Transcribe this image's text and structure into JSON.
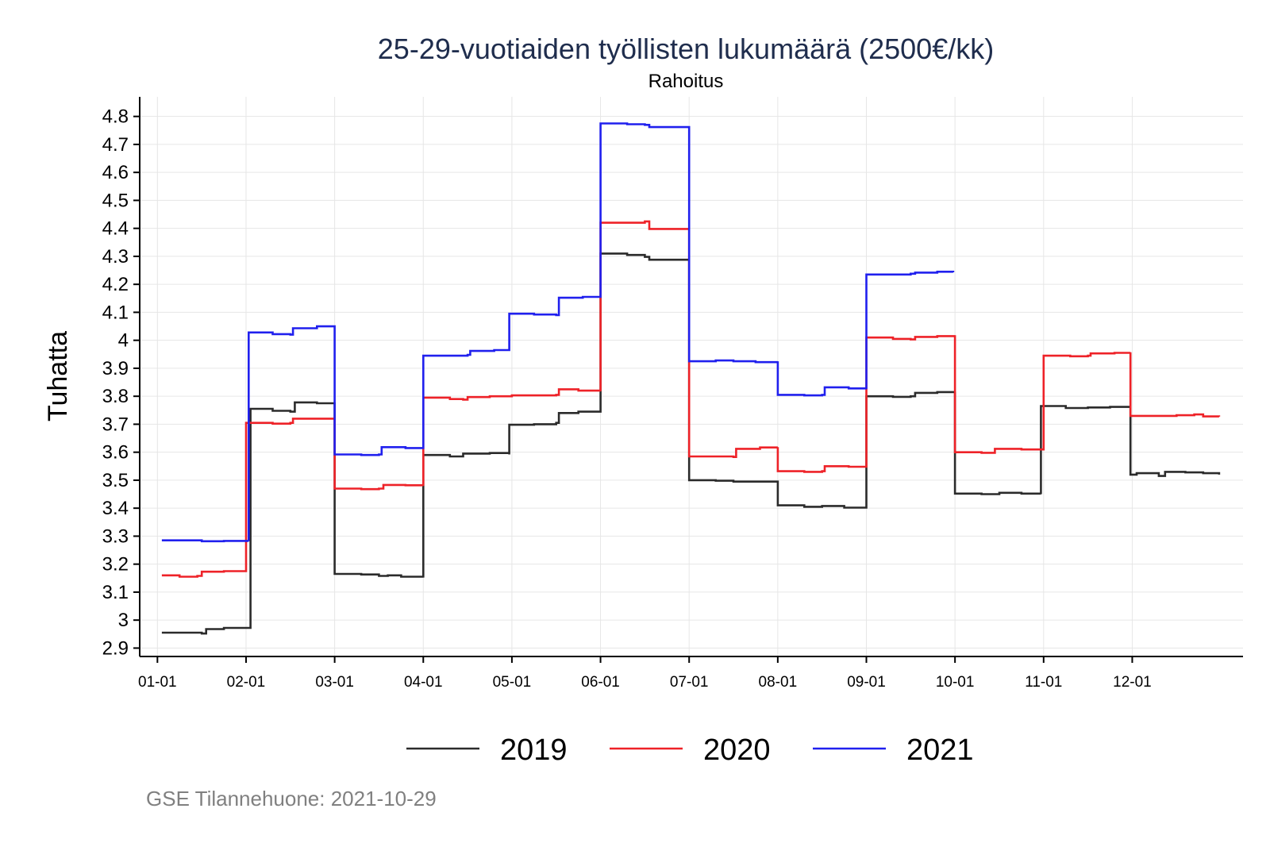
{
  "chart_data": {
    "type": "line",
    "title": "25-29-vuotiaiden työllisten lukumäärä (2500€/kk)",
    "subtitle": "Rahoitus",
    "ylabel": "Tuhatta",
    "xlabel": "",
    "ylim": [
      2.87,
      4.87
    ],
    "yticks": [
      "2.9",
      "3",
      "3.1",
      "3.2",
      "3.3",
      "3.4",
      "3.5",
      "3.6",
      "3.7",
      "3.8",
      "3.9",
      "4",
      "4.1",
      "4.2",
      "4.3",
      "4.4",
      "4.5",
      "4.6",
      "4.7",
      "4.8"
    ],
    "xticks": [
      {
        "label": "01-01",
        "month": 1
      },
      {
        "label": "02-01",
        "month": 2
      },
      {
        "label": "03-01",
        "month": 3
      },
      {
        "label": "04-01",
        "month": 4
      },
      {
        "label": "05-01",
        "month": 5
      },
      {
        "label": "06-01",
        "month": 6
      },
      {
        "label": "07-01",
        "month": 7
      },
      {
        "label": "08-01",
        "month": 8
      },
      {
        "label": "09-01",
        "month": 9
      },
      {
        "label": "10-01",
        "month": 10
      },
      {
        "label": "11-01",
        "month": 11
      },
      {
        "label": "12-01",
        "month": 12
      }
    ],
    "xlim": [
      0.8,
      13.25
    ],
    "series": [
      {
        "name": "2019",
        "color": "#2b2b2b",
        "points": [
          [
            1.05,
            2.955
          ],
          [
            1.5,
            2.952
          ],
          [
            1.55,
            2.968
          ],
          [
            1.75,
            2.972
          ],
          [
            2.05,
            2.975
          ],
          [
            2.05,
            3.755
          ],
          [
            2.3,
            3.748
          ],
          [
            2.5,
            3.745
          ],
          [
            2.55,
            3.778
          ],
          [
            2.8,
            3.775
          ],
          [
            3.0,
            3.773
          ],
          [
            3.0,
            3.165
          ],
          [
            3.3,
            3.163
          ],
          [
            3.5,
            3.158
          ],
          [
            3.6,
            3.16
          ],
          [
            3.75,
            3.155
          ],
          [
            4.0,
            3.152
          ],
          [
            4.0,
            3.59
          ],
          [
            4.3,
            3.585
          ],
          [
            4.45,
            3.595
          ],
          [
            4.75,
            3.597
          ],
          [
            4.97,
            3.592
          ],
          [
            4.97,
            3.698
          ],
          [
            5.25,
            3.7
          ],
          [
            5.5,
            3.705
          ],
          [
            5.53,
            3.74
          ],
          [
            5.75,
            3.745
          ],
          [
            6.0,
            3.748
          ],
          [
            6.0,
            4.31
          ],
          [
            6.3,
            4.305
          ],
          [
            6.5,
            4.298
          ],
          [
            6.55,
            4.288
          ],
          [
            7.0,
            4.285
          ],
          [
            7.0,
            3.5
          ],
          [
            7.3,
            3.498
          ],
          [
            7.5,
            3.495
          ],
          [
            8.0,
            3.493
          ],
          [
            8.0,
            3.41
          ],
          [
            8.3,
            3.405
          ],
          [
            8.5,
            3.408
          ],
          [
            8.75,
            3.402
          ],
          [
            9.0,
            3.403
          ],
          [
            9.0,
            3.8
          ],
          [
            9.3,
            3.798
          ],
          [
            9.5,
            3.8
          ],
          [
            9.55,
            3.812
          ],
          [
            9.8,
            3.815
          ],
          [
            10.0,
            3.816
          ],
          [
            10.0,
            3.452
          ],
          [
            10.3,
            3.45
          ],
          [
            10.5,
            3.455
          ],
          [
            10.75,
            3.452
          ],
          [
            10.97,
            3.45
          ],
          [
            10.97,
            3.765
          ],
          [
            11.25,
            3.758
          ],
          [
            11.5,
            3.76
          ],
          [
            11.75,
            3.762
          ],
          [
            11.98,
            3.765
          ],
          [
            11.98,
            3.52
          ],
          [
            12.05,
            3.525
          ],
          [
            12.3,
            3.515
          ],
          [
            12.37,
            3.53
          ],
          [
            12.6,
            3.528
          ],
          [
            12.8,
            3.525
          ],
          [
            12.98,
            3.52
          ]
        ]
      },
      {
        "name": "2020",
        "color": "#ee2228",
        "points": [
          [
            1.05,
            3.16
          ],
          [
            1.25,
            3.155
          ],
          [
            1.45,
            3.158
          ],
          [
            1.5,
            3.173
          ],
          [
            1.75,
            3.175
          ],
          [
            2.0,
            3.18
          ],
          [
            2.0,
            3.705
          ],
          [
            2.3,
            3.702
          ],
          [
            2.5,
            3.705
          ],
          [
            2.53,
            3.72
          ],
          [
            2.8,
            3.72
          ],
          [
            3.0,
            3.72
          ],
          [
            3.0,
            3.47
          ],
          [
            3.3,
            3.468
          ],
          [
            3.5,
            3.47
          ],
          [
            3.55,
            3.483
          ],
          [
            3.8,
            3.482
          ],
          [
            4.0,
            3.48
          ],
          [
            4.0,
            3.795
          ],
          [
            4.3,
            3.79
          ],
          [
            4.45,
            3.788
          ],
          [
            4.5,
            3.797
          ],
          [
            4.75,
            3.8
          ],
          [
            5.0,
            3.803
          ],
          [
            5.5,
            3.805
          ],
          [
            5.53,
            3.825
          ],
          [
            5.75,
            3.82
          ],
          [
            6.0,
            3.818
          ],
          [
            6.0,
            4.42
          ],
          [
            6.3,
            4.42
          ],
          [
            6.5,
            4.425
          ],
          [
            6.55,
            4.398
          ],
          [
            7.0,
            4.395
          ],
          [
            7.0,
            3.585
          ],
          [
            7.3,
            3.585
          ],
          [
            7.5,
            3.583
          ],
          [
            7.53,
            3.612
          ],
          [
            7.8,
            3.617
          ],
          [
            8.0,
            3.618
          ],
          [
            8.0,
            3.532
          ],
          [
            8.3,
            3.53
          ],
          [
            8.5,
            3.532
          ],
          [
            8.53,
            3.55
          ],
          [
            8.8,
            3.548
          ],
          [
            9.0,
            3.548
          ],
          [
            9.0,
            4.01
          ],
          [
            9.3,
            4.005
          ],
          [
            9.5,
            4.003
          ],
          [
            9.55,
            4.012
          ],
          [
            9.8,
            4.015
          ],
          [
            10.0,
            4.018
          ],
          [
            10.0,
            3.6
          ],
          [
            10.3,
            3.598
          ],
          [
            10.4,
            3.598
          ],
          [
            10.45,
            3.612
          ],
          [
            10.75,
            3.61
          ],
          [
            11.0,
            3.61
          ],
          [
            11.0,
            3.945
          ],
          [
            11.3,
            3.943
          ],
          [
            11.5,
            3.945
          ],
          [
            11.53,
            3.953
          ],
          [
            11.8,
            3.955
          ],
          [
            11.98,
            3.957
          ],
          [
            11.98,
            3.73
          ],
          [
            12.3,
            3.73
          ],
          [
            12.5,
            3.732
          ],
          [
            12.7,
            3.735
          ],
          [
            12.8,
            3.728
          ],
          [
            12.98,
            3.727
          ]
        ]
      },
      {
        "name": "2021",
        "color": "#2020ee",
        "points": [
          [
            1.05,
            3.285
          ],
          [
            1.5,
            3.282
          ],
          [
            1.75,
            3.283
          ],
          [
            2.03,
            3.282
          ],
          [
            2.03,
            4.028
          ],
          [
            2.3,
            4.022
          ],
          [
            2.5,
            4.02
          ],
          [
            2.53,
            4.043
          ],
          [
            2.8,
            4.05
          ],
          [
            3.0,
            4.05
          ],
          [
            3.0,
            3.592
          ],
          [
            3.3,
            3.59
          ],
          [
            3.5,
            3.592
          ],
          [
            3.53,
            3.618
          ],
          [
            3.8,
            3.615
          ],
          [
            4.0,
            3.617
          ],
          [
            4.0,
            3.945
          ],
          [
            4.3,
            3.945
          ],
          [
            4.5,
            3.948
          ],
          [
            4.53,
            3.962
          ],
          [
            4.8,
            3.965
          ],
          [
            4.97,
            3.968
          ],
          [
            4.97,
            4.095
          ],
          [
            5.25,
            4.092
          ],
          [
            5.5,
            4.09
          ],
          [
            5.53,
            4.152
          ],
          [
            5.8,
            4.155
          ],
          [
            6.0,
            4.155
          ],
          [
            6.0,
            4.775
          ],
          [
            6.3,
            4.772
          ],
          [
            6.5,
            4.77
          ],
          [
            6.55,
            4.762
          ],
          [
            7.0,
            4.76
          ],
          [
            7.0,
            3.925
          ],
          [
            7.3,
            3.928
          ],
          [
            7.5,
            3.925
          ],
          [
            7.75,
            3.922
          ],
          [
            8.0,
            3.925
          ],
          [
            8.0,
            3.805
          ],
          [
            8.3,
            3.803
          ],
          [
            8.5,
            3.805
          ],
          [
            8.53,
            3.832
          ],
          [
            8.8,
            3.828
          ],
          [
            9.0,
            3.825
          ],
          [
            9.0,
            4.235
          ],
          [
            9.3,
            4.235
          ],
          [
            9.5,
            4.238
          ],
          [
            9.55,
            4.242
          ],
          [
            9.8,
            4.245
          ],
          [
            9.98,
            4.243
          ]
        ]
      }
    ]
  },
  "source_note": "GSE Tilannehuone: 2021-10-29"
}
